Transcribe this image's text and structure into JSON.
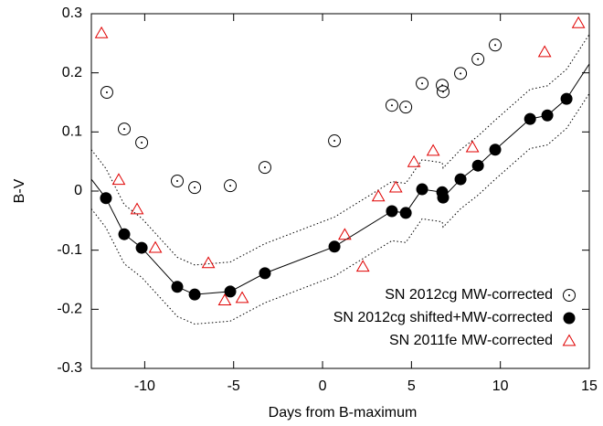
{
  "chart_data": {
    "type": "scatter",
    "xlabel": "Days from B-maximum",
    "ylabel": "B-V",
    "xlim": [
      -13,
      15
    ],
    "xticks": [
      -10,
      -5,
      0,
      5,
      10,
      15
    ],
    "ylim": [
      -0.3,
      0.3
    ],
    "yticks": [
      -0.3,
      -0.2,
      -0.1,
      0,
      0.1,
      0.2,
      0.3
    ],
    "legend": "lower right",
    "series": [
      {
        "name": "SN 2012cg MW-corrected",
        "marker": "open-circle",
        "color": "#000000",
        "x": [
          -12.13,
          -11.15,
          -10.17,
          -8.17,
          -7.19,
          -5.19,
          -3.24,
          0.67,
          3.9,
          4.68,
          5.6,
          6.73,
          6.78,
          7.76,
          8.74,
          9.71
        ],
        "values": [
          0.167,
          0.105,
          0.082,
          0.017,
          0.006,
          0.009,
          0.04,
          0.085,
          0.145,
          0.142,
          0.182,
          0.179,
          0.168,
          0.199,
          0.223,
          0.247
        ]
      },
      {
        "name": "SN 2012cg shifted+MW-corrected",
        "marker": "filled-circle",
        "color": "#000000",
        "x": [
          -12.18,
          -11.15,
          -10.17,
          -8.17,
          -7.19,
          -5.19,
          -3.24,
          0.67,
          3.9,
          4.68,
          5.6,
          6.73,
          6.78,
          7.76,
          8.74,
          9.71,
          11.67,
          12.64,
          13.72
        ],
        "values": [
          -0.012,
          -0.073,
          -0.096,
          -0.162,
          -0.175,
          -0.17,
          -0.139,
          -0.094,
          -0.034,
          -0.037,
          0.003,
          -0.002,
          -0.011,
          0.02,
          0.043,
          0.07,
          0.122,
          0.128,
          0.156
        ]
      },
      {
        "name": "SN 2011fe MW-corrected",
        "marker": "triangle",
        "color": "#e00000",
        "x": [
          -12.43,
          -11.46,
          -10.43,
          -9.4,
          -6.42,
          -5.5,
          -4.52,
          1.25,
          2.27,
          3.14,
          4.12,
          5.14,
          6.22,
          8.43,
          12.49,
          14.39
        ],
        "values": [
          0.267,
          0.019,
          -0.031,
          -0.096,
          -0.122,
          -0.185,
          -0.181,
          -0.074,
          -0.128,
          -0.009,
          0.006,
          0.049,
          0.068,
          0.074,
          0.235,
          0.284
        ]
      }
    ],
    "line_x": [
      -13,
      -12.18,
      -11.15,
      -10.17,
      -8.17,
      -7.19,
      -5.19,
      -3.24,
      0.67,
      3.9,
      4.68,
      5.6,
      6.73,
      6.78,
      7.76,
      8.74,
      9.71,
      11.67,
      12.64,
      13.72,
      15
    ],
    "lines": [
      {
        "style": "solid",
        "color": "#000000",
        "values": [
          0.02,
          -0.012,
          -0.073,
          -0.096,
          -0.162,
          -0.175,
          -0.17,
          -0.139,
          -0.094,
          -0.034,
          -0.037,
          0.003,
          -0.002,
          -0.011,
          0.02,
          0.043,
          0.07,
          0.122,
          0.128,
          0.156,
          0.215
        ]
      },
      {
        "style": "dotted",
        "color": "#000000",
        "values": [
          0.07,
          0.038,
          -0.023,
          -0.046,
          -0.112,
          -0.125,
          -0.12,
          -0.089,
          -0.044,
          0.016,
          0.013,
          0.053,
          0.048,
          0.039,
          0.07,
          0.093,
          0.12,
          0.172,
          0.178,
          0.206,
          0.265
        ]
      },
      {
        "style": "dotted",
        "color": "#000000",
        "values": [
          -0.03,
          -0.062,
          -0.123,
          -0.146,
          -0.212,
          -0.225,
          -0.22,
          -0.189,
          -0.144,
          -0.084,
          -0.087,
          -0.047,
          -0.052,
          -0.061,
          -0.03,
          -0.007,
          0.02,
          0.072,
          0.078,
          0.106,
          0.165
        ]
      }
    ]
  }
}
